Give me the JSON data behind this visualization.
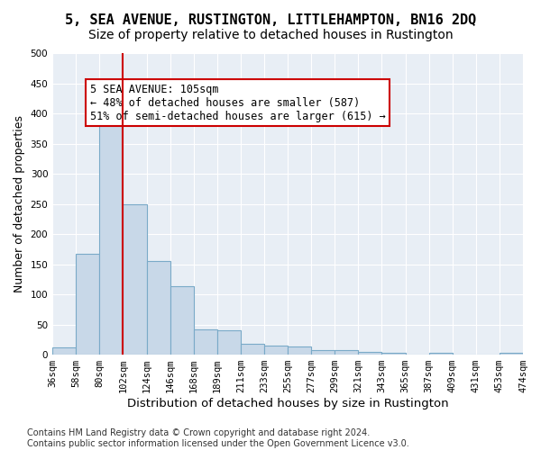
{
  "title": "5, SEA AVENUE, RUSTINGTON, LITTLEHAMPTON, BN16 2DQ",
  "subtitle": "Size of property relative to detached houses in Rustington",
  "xlabel": "Distribution of detached houses by size in Rustington",
  "ylabel": "Number of detached properties",
  "bin_labels": [
    "36sqm",
    "58sqm",
    "80sqm",
    "102sqm",
    "124sqm",
    "146sqm",
    "168sqm",
    "189sqm",
    "211sqm",
    "233sqm",
    "255sqm",
    "277sqm",
    "299sqm",
    "321sqm",
    "343sqm",
    "365sqm",
    "387sqm",
    "409sqm",
    "431sqm",
    "453sqm",
    "474sqm"
  ],
  "bar_values": [
    12,
    167,
    390,
    250,
    155,
    113,
    42,
    40,
    18,
    15,
    13,
    8,
    7,
    5,
    3,
    0,
    3,
    0,
    0,
    3
  ],
  "bar_color": "#c8d8e8",
  "bar_edge_color": "#7aaac8",
  "vline_x": 3,
  "vline_color": "#cc0000",
  "annotation_text": "5 SEA AVENUE: 105sqm\n← 48% of detached houses are smaller (587)\n51% of semi-detached houses are larger (615) →",
  "annotation_box_color": "#ffffff",
  "annotation_box_edge": "#cc0000",
  "ylim": [
    0,
    500
  ],
  "yticks": [
    0,
    50,
    100,
    150,
    200,
    250,
    300,
    350,
    400,
    450,
    500
  ],
  "footer": "Contains HM Land Registry data © Crown copyright and database right 2024.\nContains public sector information licensed under the Open Government Licence v3.0.",
  "bg_color": "#e8eef5",
  "title_fontsize": 11,
  "subtitle_fontsize": 10,
  "axis_label_fontsize": 9,
  "tick_fontsize": 7.5,
  "annotation_fontsize": 8.5,
  "footer_fontsize": 7
}
